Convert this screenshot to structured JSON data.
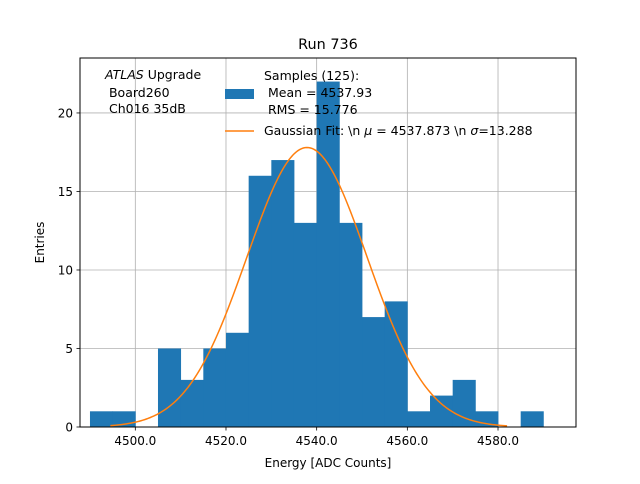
{
  "chart_data": {
    "type": "bar",
    "title": "Run 736",
    "xlabel": "Energy [ADC Counts]",
    "ylabel": "Entries",
    "xlim": [
      4487.8,
      4597.2
    ],
    "ylim": [
      0,
      23.5
    ],
    "grid": true,
    "xticks": [
      {
        "value": 4500,
        "label": "4500.0"
      },
      {
        "value": 4520,
        "label": "4520.0"
      },
      {
        "value": 4540,
        "label": "4540.0"
      },
      {
        "value": 4560,
        "label": "4560.0"
      },
      {
        "value": 4580,
        "label": "4580.0"
      }
    ],
    "yticks": [
      {
        "value": 0,
        "label": "0"
      },
      {
        "value": 5,
        "label": "5"
      },
      {
        "value": 10,
        "label": "10"
      },
      {
        "value": 15,
        "label": "15"
      },
      {
        "value": 20,
        "label": "20"
      }
    ],
    "histogram": {
      "name": "Samples (125)",
      "color": "#1f77b4",
      "bin_start": 4490,
      "bin_width": 5,
      "counts": [
        1,
        1,
        0,
        5,
        3,
        5,
        6,
        16,
        17,
        13,
        22,
        13,
        7,
        8,
        1,
        2,
        3,
        1,
        0,
        1
      ]
    },
    "fit": {
      "name": "Gaussian Fit",
      "color": "#ff7f0e",
      "amplitude": 17.8,
      "mu": 4537.873,
      "sigma": 13.288,
      "x_start": 4494.5,
      "x_end": 4582.0
    },
    "annotation": {
      "line1_italic": "ATLAS",
      "line1_rest": " Upgrade",
      "line2": " Board260",
      "line3": " Ch016 35dB"
    },
    "legend": {
      "placement": "upper-center",
      "samples_line1": "Samples (125):",
      "samples_line2": " Mean = 4537.93",
      "samples_line3": " RMS = 15.776",
      "fit_prefix": "Gaussian Fit: \\n ",
      "fit_mu_symbol": "μ",
      "fit_mid": " = 4537.873 \\n ",
      "fit_sigma_symbol": "σ",
      "fit_suffix": "=13.288"
    }
  }
}
